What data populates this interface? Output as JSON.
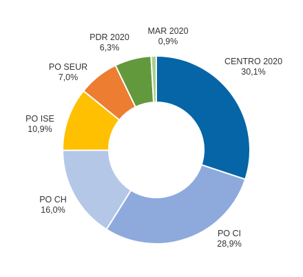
{
  "chart_data": {
    "type": "pie",
    "donut": true,
    "legend": "none",
    "slices": [
      {
        "label": "CENTRO 2020",
        "value": 30.1,
        "value_text": "30,1%",
        "color": "#0565a6"
      },
      {
        "label": "PO CI",
        "value": 28.9,
        "value_text": "28,9%",
        "color": "#8eaadc"
      },
      {
        "label": "PO CH",
        "value": 16.0,
        "value_text": "16,0%",
        "color": "#b4c7e7"
      },
      {
        "label": "PO ISE",
        "value": 10.9,
        "value_text": "10,9%",
        "color": "#fec000"
      },
      {
        "label": "PO SEUR",
        "value": 7.0,
        "value_text": "7,0%",
        "color": "#ed7d31"
      },
      {
        "label": "PDR 2020",
        "value": 6.3,
        "value_text": "6,3%",
        "color": "#63993d"
      },
      {
        "label": "MAR 2020",
        "value": 0.9,
        "value_text": "0,9%",
        "color": "#a9d08e"
      }
    ]
  }
}
